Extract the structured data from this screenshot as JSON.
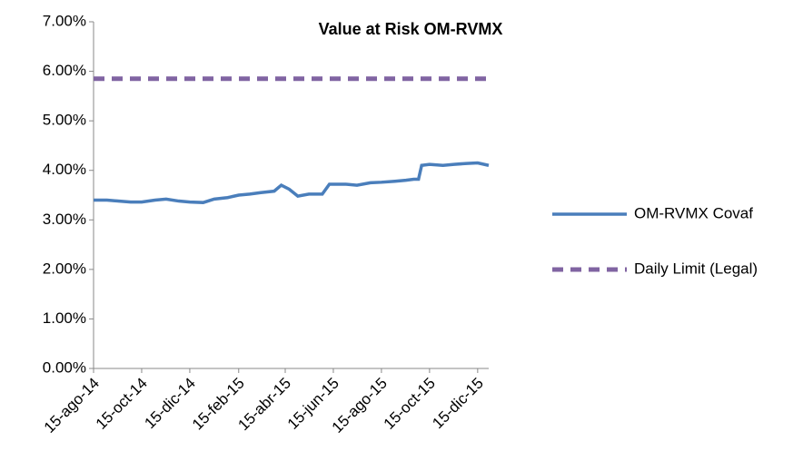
{
  "chart_data": {
    "type": "line",
    "title": "Value at Risk OM-RVMX",
    "ylim": [
      0,
      7
    ],
    "yticks": [
      {
        "value": 0,
        "label": "0.00%"
      },
      {
        "value": 1,
        "label": "1.00%"
      },
      {
        "value": 2,
        "label": "2.00%"
      },
      {
        "value": 3,
        "label": "3.00%"
      },
      {
        "value": 4,
        "label": "4.00%"
      },
      {
        "value": 5,
        "label": "5.00%"
      },
      {
        "value": 6,
        "label": "6.00%"
      },
      {
        "value": 7,
        "label": "7.00%"
      }
    ],
    "xlim": [
      "2014-08-15",
      "2015-12-29"
    ],
    "xticks": [
      {
        "value": "2014-08-15",
        "label": "15-ago-14"
      },
      {
        "value": "2014-10-15",
        "label": "15-oct-14"
      },
      {
        "value": "2014-12-15",
        "label": "15-dic-14"
      },
      {
        "value": "2015-02-15",
        "label": "15-feb-15"
      },
      {
        "value": "2015-04-15",
        "label": "15-abr-15"
      },
      {
        "value": "2015-06-15",
        "label": "15-jun-15"
      },
      {
        "value": "2015-08-15",
        "label": "15-ago-15"
      },
      {
        "value": "2015-10-15",
        "label": "15-oct-15"
      },
      {
        "value": "2015-12-15",
        "label": "15-dic-15"
      }
    ],
    "legend": "right",
    "series": [
      {
        "name": "OM-RVMX Covaf",
        "color": "#4a7ebb",
        "dash": false,
        "x": [
          "2014-08-15",
          "2014-09-01",
          "2014-09-15",
          "2014-10-01",
          "2014-10-15",
          "2014-11-01",
          "2014-11-15",
          "2014-12-01",
          "2014-12-15",
          "2015-01-01",
          "2015-01-15",
          "2015-02-01",
          "2015-02-15",
          "2015-03-01",
          "2015-03-15",
          "2015-04-01",
          "2015-04-10",
          "2015-04-20",
          "2015-05-01",
          "2015-05-15",
          "2015-06-01",
          "2015-06-10",
          "2015-07-01",
          "2015-07-15",
          "2015-08-01",
          "2015-08-15",
          "2015-09-01",
          "2015-09-15",
          "2015-09-25",
          "2015-10-01",
          "2015-10-05",
          "2015-10-15",
          "2015-11-01",
          "2015-11-15",
          "2015-12-01",
          "2015-12-15",
          "2015-12-29"
        ],
        "values": [
          3.4,
          3.4,
          3.38,
          3.36,
          3.36,
          3.4,
          3.42,
          3.38,
          3.36,
          3.35,
          3.42,
          3.45,
          3.5,
          3.52,
          3.55,
          3.58,
          3.7,
          3.62,
          3.48,
          3.52,
          3.52,
          3.72,
          3.72,
          3.7,
          3.75,
          3.76,
          3.78,
          3.8,
          3.82,
          3.82,
          4.1,
          4.12,
          4.1,
          4.12,
          4.14,
          4.15,
          4.1
        ]
      },
      {
        "name": "Daily Limit (Legal)",
        "color": "#8064a2",
        "dash": true,
        "x": [
          "2014-08-15",
          "2015-12-29"
        ],
        "values": [
          5.85,
          5.85
        ]
      }
    ]
  }
}
